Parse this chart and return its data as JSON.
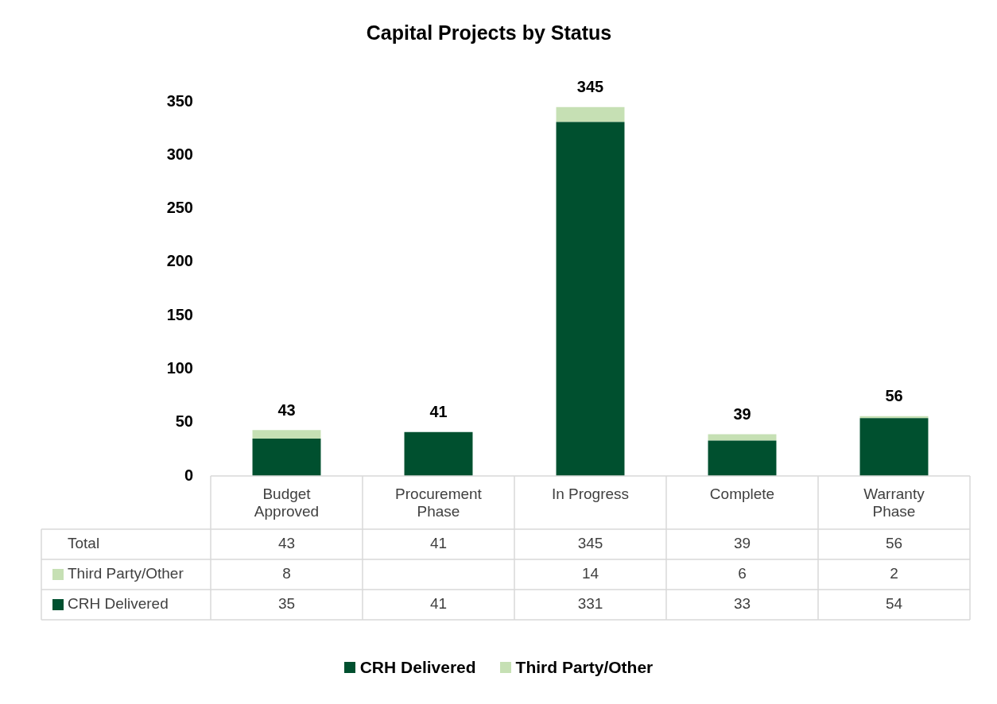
{
  "chart_data": {
    "type": "bar",
    "title": "Capital Projects by Status",
    "categories": [
      "Budget Approved",
      "Procurement Phase",
      "In Progress",
      "Complete",
      "Warranty Phase"
    ],
    "series": [
      {
        "name": "CRH Delivered",
        "color": "#00502f",
        "values": [
          35,
          41,
          331,
          33,
          54
        ]
      },
      {
        "name": "Third Party/Other",
        "color": "#c6e0b4",
        "values": [
          8,
          null,
          14,
          6,
          2
        ]
      }
    ],
    "annotations": [
      "Total"
    ],
    "stacked": true,
    "totals": [
      "43",
      "41",
      "345",
      "39",
      "56"
    ],
    "data_labels": true,
    "ylim": [
      0,
      350
    ],
    "yticks": [
      0,
      50,
      100,
      150,
      200,
      250,
      300,
      350
    ],
    "grid": false,
    "legend": "bottom"
  }
}
